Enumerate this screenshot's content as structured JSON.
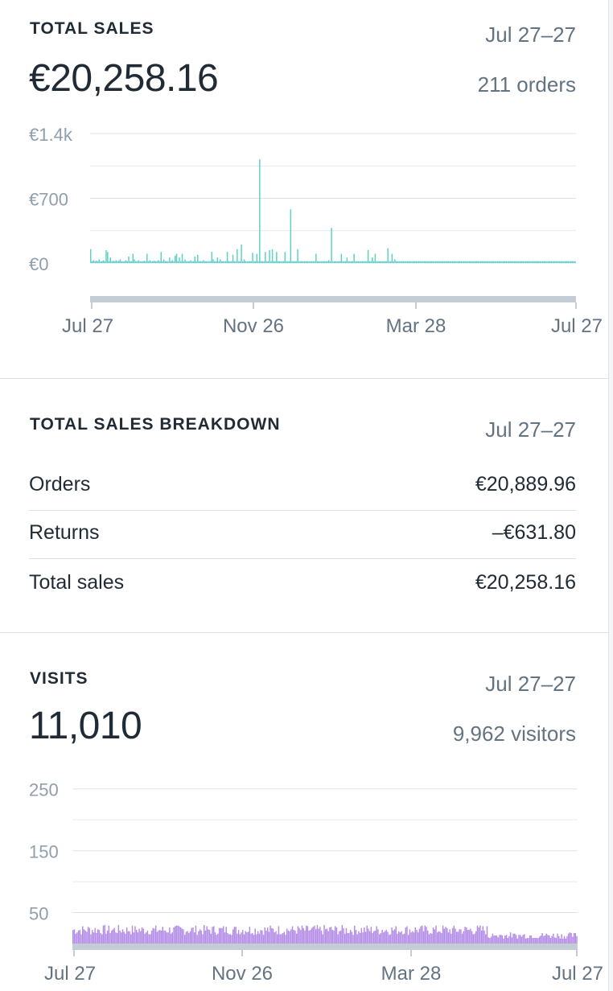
{
  "sales": {
    "heading": "TOTAL SALES",
    "range": "Jul 27–27",
    "total": "€20,258.16",
    "orders": "211 orders",
    "chart_data": {
      "type": "bar",
      "y_ticks": [
        "€1.4k",
        "€700",
        "€0"
      ],
      "ylim": [
        0,
        1400
      ],
      "x_ticks": [
        "Jul 27",
        "Nov 26",
        "Mar 28",
        "Jul 27"
      ],
      "color": "#5fd0c6",
      "baseline": 20,
      "note": "daily sales; peaks approx. values",
      "values": [
        150,
        20,
        30,
        20,
        25,
        20,
        40,
        20,
        20,
        30,
        20,
        140,
        120,
        20,
        60,
        20,
        25,
        20,
        30,
        20,
        25,
        40,
        20,
        20,
        20,
        30,
        20,
        70,
        20,
        20,
        100,
        40,
        20,
        20,
        30,
        20,
        20,
        20,
        25,
        20,
        100,
        20,
        30,
        20,
        20,
        25,
        20,
        20,
        30,
        20,
        120,
        20,
        40,
        20,
        20,
        20,
        60,
        20,
        30,
        20,
        80,
        100,
        20,
        60,
        20,
        100,
        20,
        40,
        20,
        20,
        20,
        30,
        20,
        20,
        70,
        20,
        90,
        20,
        20,
        20,
        30,
        20,
        20,
        20,
        20,
        20,
        120,
        40,
        20,
        20,
        60,
        20,
        40,
        20,
        20,
        20,
        20,
        120,
        20,
        20,
        20,
        90,
        20,
        20,
        150,
        20,
        20,
        200,
        20,
        40,
        20,
        20,
        20,
        20,
        20,
        110,
        20,
        20,
        100,
        20,
        1120,
        20,
        20,
        20,
        120,
        20,
        20,
        140,
        20,
        150,
        20,
        20,
        120,
        20,
        20,
        20,
        20,
        20,
        120,
        20,
        20,
        20,
        580,
        20,
        20,
        20,
        20,
        150,
        20,
        20,
        20,
        20,
        20,
        20,
        20,
        20,
        20,
        20,
        20,
        20,
        100,
        20,
        20,
        20,
        20,
        20,
        20,
        20,
        20,
        30,
        20,
        380,
        20,
        20,
        20,
        20,
        20,
        20,
        100,
        20,
        20,
        20,
        60,
        20,
        20,
        20,
        20,
        100,
        20,
        20,
        20,
        20,
        20,
        20,
        20,
        20,
        20,
        140,
        20,
        20,
        60,
        20,
        100,
        20,
        20,
        20,
        20,
        20,
        20,
        20,
        20,
        160,
        20,
        20,
        100,
        20,
        40,
        20,
        20,
        20,
        20,
        20,
        20,
        20,
        20,
        20,
        20,
        20,
        20,
        20,
        20,
        20,
        20,
        20,
        20,
        20,
        20,
        20,
        20,
        20,
        20,
        20,
        20,
        20,
        20,
        20,
        20,
        20,
        20,
        20,
        20,
        20,
        20,
        20,
        20,
        20,
        20,
        20,
        20,
        20,
        20,
        20,
        20,
        20,
        20,
        20,
        20,
        20,
        20,
        20,
        20,
        20,
        20,
        20,
        20,
        20,
        20,
        20,
        20,
        20,
        20,
        20,
        20,
        20,
        20,
        20,
        20,
        20,
        20,
        20,
        20,
        20,
        20,
        20,
        20,
        20,
        20,
        20,
        20,
        20,
        20,
        20,
        20,
        20,
        20,
        20,
        20,
        20,
        20,
        20,
        20,
        20,
        20,
        20,
        20,
        20,
        20,
        20,
        20,
        20,
        20,
        20,
        20,
        20,
        20,
        20,
        20,
        20,
        20,
        20,
        20,
        20,
        20,
        20,
        20,
        20,
        20,
        20,
        20,
        20,
        20,
        20,
        20,
        20,
        20
      ]
    }
  },
  "breakdown": {
    "heading": "TOTAL SALES BREAKDOWN",
    "range": "Jul 27–27",
    "rows": [
      {
        "label": "Orders",
        "value": "€20,889.96"
      },
      {
        "label": "Returns",
        "value": "–€631.80"
      },
      {
        "label": "Total sales",
        "value": "€20,258.16"
      }
    ]
  },
  "visits": {
    "heading": "VISITS",
    "range": "Jul 27–27",
    "total": "11,010",
    "visitors": "9,962 visitors",
    "chart_data": {
      "type": "bar",
      "y_ticks": [
        "250",
        "150",
        "50"
      ],
      "ylim": [
        0,
        250
      ],
      "x_ticks": [
        "Jul 27",
        "Nov 26",
        "Mar 28",
        "Jul 27"
      ],
      "color": "#b38ce6",
      "note": "daily visits",
      "values": []
    }
  }
}
